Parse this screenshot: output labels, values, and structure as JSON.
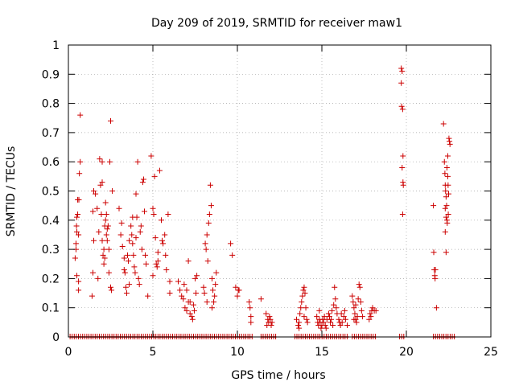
{
  "chart_data": {
    "type": "scatter",
    "title": "Day 209 of 2019, SRMTID for receiver maw1",
    "xlabel": "GPS time / hours",
    "ylabel": "SRMTID / TECUs",
    "xlim": [
      0,
      25
    ],
    "ylim": [
      0,
      1
    ],
    "xticks": [
      "0",
      "5",
      "10",
      "15",
      "20",
      "25"
    ],
    "yticks": [
      "0",
      "0.1",
      "0.2",
      "0.3",
      "0.4",
      "0.5",
      "0.6",
      "0.7",
      "0.8",
      "0.9",
      "1"
    ],
    "marker": "+",
    "series_color": "#cc0000",
    "zero_band": [
      [
        0.1,
        10.9
      ],
      [
        11.4,
        12.3
      ],
      [
        13.4,
        16.6
      ],
      [
        16.8,
        18.2
      ],
      [
        19.6,
        19.9
      ],
      [
        21.6,
        22.9
      ]
    ],
    "points": [
      [
        0.4,
        0.27
      ],
      [
        0.45,
        0.32
      ],
      [
        0.5,
        0.36
      ],
      [
        0.5,
        0.41
      ],
      [
        0.55,
        0.47
      ],
      [
        0.5,
        0.21
      ],
      [
        0.6,
        0.19
      ],
      [
        0.6,
        0.16
      ],
      [
        0.65,
        0.56
      ],
      [
        0.7,
        0.6
      ],
      [
        0.7,
        0.76
      ],
      [
        0.55,
        0.42
      ],
      [
        0.6,
        0.35
      ],
      [
        0.45,
        0.3
      ],
      [
        0.62,
        0.47
      ],
      [
        0.48,
        0.38
      ],
      [
        1.4,
        0.14
      ],
      [
        1.45,
        0.22
      ],
      [
        1.5,
        0.33
      ],
      [
        1.45,
        0.43
      ],
      [
        1.5,
        0.5
      ],
      [
        1.6,
        0.49
      ],
      [
        1.7,
        0.44
      ],
      [
        1.8,
        0.36
      ],
      [
        1.85,
        0.61
      ],
      [
        1.9,
        0.52
      ],
      [
        2.0,
        0.6
      ],
      [
        1.95,
        0.42
      ],
      [
        2.0,
        0.33
      ],
      [
        2.05,
        0.28
      ],
      [
        2.1,
        0.25
      ],
      [
        2.1,
        0.3
      ],
      [
        2.15,
        0.38
      ],
      [
        2.2,
        0.4
      ],
      [
        2.2,
        0.46
      ],
      [
        2.25,
        0.35
      ],
      [
        2.3,
        0.33
      ],
      [
        2.3,
        0.37
      ],
      [
        2.35,
        0.38
      ],
      [
        2.4,
        0.3
      ],
      [
        2.45,
        0.6
      ],
      [
        2.5,
        0.74
      ],
      [
        2.5,
        0.17
      ],
      [
        2.55,
        0.16
      ],
      [
        2.6,
        0.5
      ],
      [
        2.0,
        0.53
      ],
      [
        2.15,
        0.27
      ],
      [
        2.25,
        0.42
      ],
      [
        1.75,
        0.2
      ],
      [
        2.4,
        0.22
      ],
      [
        3.0,
        0.44
      ],
      [
        3.1,
        0.35
      ],
      [
        3.2,
        0.31
      ],
      [
        3.3,
        0.23
      ],
      [
        3.35,
        0.22
      ],
      [
        3.4,
        0.17
      ],
      [
        3.45,
        0.15
      ],
      [
        3.5,
        0.28
      ],
      [
        3.55,
        0.26
      ],
      [
        3.6,
        0.33
      ],
      [
        3.7,
        0.38
      ],
      [
        3.75,
        0.35
      ],
      [
        3.8,
        0.32
      ],
      [
        3.85,
        0.28
      ],
      [
        3.9,
        0.24
      ],
      [
        3.95,
        0.22
      ],
      [
        4.0,
        0.49
      ],
      [
        4.05,
        0.41
      ],
      [
        4.1,
        0.6
      ],
      [
        4.15,
        0.2
      ],
      [
        4.2,
        0.18
      ],
      [
        4.25,
        0.36
      ],
      [
        4.3,
        0.38
      ],
      [
        4.4,
        0.53
      ],
      [
        4.45,
        0.54
      ],
      [
        4.5,
        0.43
      ],
      [
        4.55,
        0.28
      ],
      [
        4.6,
        0.25
      ],
      [
        3.6,
        0.18
      ],
      [
        3.3,
        0.27
      ],
      [
        3.15,
        0.39
      ],
      [
        4.0,
        0.34
      ],
      [
        3.8,
        0.41
      ],
      [
        4.35,
        0.3
      ],
      [
        4.9,
        0.62
      ],
      [
        5.0,
        0.44
      ],
      [
        5.05,
        0.42
      ],
      [
        5.1,
        0.55
      ],
      [
        5.15,
        0.34
      ],
      [
        5.2,
        0.25
      ],
      [
        5.25,
        0.24
      ],
      [
        5.3,
        0.26
      ],
      [
        5.4,
        0.57
      ],
      [
        5.5,
        0.4
      ],
      [
        5.55,
        0.33
      ],
      [
        5.6,
        0.32
      ],
      [
        5.7,
        0.35
      ],
      [
        5.75,
        0.28
      ],
      [
        5.8,
        0.23
      ],
      [
        5.9,
        0.42
      ],
      [
        6.0,
        0.19
      ],
      [
        6.0,
        0.15
      ],
      [
        4.7,
        0.14
      ],
      [
        5.0,
        0.21
      ],
      [
        5.3,
        0.29
      ],
      [
        6.5,
        0.19
      ],
      [
        6.6,
        0.16
      ],
      [
        6.7,
        0.14
      ],
      [
        6.8,
        0.13
      ],
      [
        6.9,
        0.1
      ],
      [
        7.0,
        0.09
      ],
      [
        7.1,
        0.12
      ],
      [
        7.1,
        0.26
      ],
      [
        7.2,
        0.08
      ],
      [
        7.3,
        0.07
      ],
      [
        7.35,
        0.06
      ],
      [
        7.4,
        0.11
      ],
      [
        7.45,
        0.09
      ],
      [
        7.5,
        0.2
      ],
      [
        7.55,
        0.15
      ],
      [
        7.6,
        0.21
      ],
      [
        7.0,
        0.16
      ],
      [
        7.2,
        0.12
      ],
      [
        6.85,
        0.18
      ],
      [
        8.0,
        0.17
      ],
      [
        8.05,
        0.15
      ],
      [
        8.1,
        0.32
      ],
      [
        8.15,
        0.3
      ],
      [
        8.2,
        0.35
      ],
      [
        8.25,
        0.26
      ],
      [
        8.3,
        0.39
      ],
      [
        8.35,
        0.42
      ],
      [
        8.4,
        0.52
      ],
      [
        8.45,
        0.45
      ],
      [
        8.5,
        0.2
      ],
      [
        8.55,
        0.16
      ],
      [
        8.6,
        0.12
      ],
      [
        8.65,
        0.14
      ],
      [
        8.7,
        0.18
      ],
      [
        8.75,
        0.22
      ],
      [
        8.2,
        0.12
      ],
      [
        8.5,
        0.1
      ],
      [
        9.6,
        0.32
      ],
      [
        9.7,
        0.28
      ],
      [
        9.9,
        0.17
      ],
      [
        10.0,
        0.14
      ],
      [
        10.05,
        0.16
      ],
      [
        10.1,
        0.16
      ],
      [
        10.7,
        0.12
      ],
      [
        10.75,
        0.1
      ],
      [
        10.8,
        0.07
      ],
      [
        10.8,
        0.05
      ],
      [
        11.4,
        0.13
      ],
      [
        11.7,
        0.08
      ],
      [
        11.8,
        0.06
      ],
      [
        11.85,
        0.05
      ],
      [
        11.9,
        0.07
      ],
      [
        11.95,
        0.06
      ],
      [
        12.0,
        0.04
      ],
      [
        12.05,
        0.05
      ],
      [
        11.75,
        0.04
      ],
      [
        13.5,
        0.06
      ],
      [
        13.6,
        0.04
      ],
      [
        13.65,
        0.05
      ],
      [
        13.7,
        0.08
      ],
      [
        13.75,
        0.1
      ],
      [
        13.8,
        0.12
      ],
      [
        13.85,
        0.14
      ],
      [
        13.9,
        0.16
      ],
      [
        13.95,
        0.17
      ],
      [
        14.0,
        0.15
      ],
      [
        14.05,
        0.1
      ],
      [
        14.1,
        0.06
      ],
      [
        14.15,
        0.05
      ],
      [
        13.65,
        0.03
      ],
      [
        13.95,
        0.07
      ],
      [
        14.7,
        0.07
      ],
      [
        14.75,
        0.05
      ],
      [
        14.8,
        0.04
      ],
      [
        14.85,
        0.06
      ],
      [
        14.9,
        0.05
      ],
      [
        14.95,
        0.03
      ],
      [
        15.0,
        0.04
      ],
      [
        15.05,
        0.06
      ],
      [
        15.1,
        0.05
      ],
      [
        15.15,
        0.07
      ],
      [
        15.2,
        0.04
      ],
      [
        15.3,
        0.06
      ],
      [
        15.4,
        0.08
      ],
      [
        15.45,
        0.07
      ],
      [
        15.5,
        0.05
      ],
      [
        15.55,
        0.06
      ],
      [
        15.6,
        0.09
      ],
      [
        15.7,
        0.11
      ],
      [
        15.75,
        0.17
      ],
      [
        15.8,
        0.13
      ],
      [
        15.85,
        0.1
      ],
      [
        15.9,
        0.08
      ],
      [
        16.0,
        0.06
      ],
      [
        16.05,
        0.05
      ],
      [
        16.1,
        0.04
      ],
      [
        16.2,
        0.05
      ],
      [
        16.3,
        0.07
      ],
      [
        16.35,
        0.09
      ],
      [
        16.4,
        0.06
      ],
      [
        16.5,
        0.04
      ],
      [
        14.85,
        0.09
      ],
      [
        15.25,
        0.03
      ],
      [
        15.65,
        0.04
      ],
      [
        16.15,
        0.08
      ],
      [
        16.8,
        0.14
      ],
      [
        16.85,
        0.12
      ],
      [
        16.9,
        0.1
      ],
      [
        16.95,
        0.08
      ],
      [
        17.0,
        0.06
      ],
      [
        17.05,
        0.05
      ],
      [
        17.1,
        0.07
      ],
      [
        17.15,
        0.13
      ],
      [
        17.2,
        0.18
      ],
      [
        17.25,
        0.17
      ],
      [
        17.3,
        0.12
      ],
      [
        17.35,
        0.09
      ],
      [
        17.4,
        0.07
      ],
      [
        17.0,
        0.11
      ],
      [
        16.9,
        0.06
      ],
      [
        17.8,
        0.06
      ],
      [
        17.85,
        0.08
      ],
      [
        17.9,
        0.07
      ],
      [
        17.95,
        0.09
      ],
      [
        18.0,
        0.1
      ],
      [
        18.1,
        0.09
      ],
      [
        18.2,
        0.09
      ],
      [
        19.7,
        0.92
      ],
      [
        19.75,
        0.91
      ],
      [
        19.7,
        0.87
      ],
      [
        19.72,
        0.79
      ],
      [
        19.78,
        0.78
      ],
      [
        19.8,
        0.62
      ],
      [
        19.75,
        0.58
      ],
      [
        19.8,
        0.53
      ],
      [
        19.82,
        0.52
      ],
      [
        19.78,
        0.42
      ],
      [
        21.6,
        0.45
      ],
      [
        21.62,
        0.29
      ],
      [
        21.65,
        0.23
      ],
      [
        21.68,
        0.21
      ],
      [
        21.7,
        0.2
      ],
      [
        21.72,
        0.23
      ],
      [
        21.78,
        0.1
      ],
      [
        22.2,
        0.73
      ],
      [
        22.25,
        0.6
      ],
      [
        22.28,
        0.56
      ],
      [
        22.3,
        0.52
      ],
      [
        22.32,
        0.5
      ],
      [
        22.35,
        0.48
      ],
      [
        22.38,
        0.45
      ],
      [
        22.3,
        0.44
      ],
      [
        22.35,
        0.41
      ],
      [
        22.4,
        0.4
      ],
      [
        22.42,
        0.39
      ],
      [
        22.4,
        0.58
      ],
      [
        22.45,
        0.55
      ],
      [
        22.47,
        0.52
      ],
      [
        22.5,
        0.49
      ],
      [
        22.48,
        0.42
      ],
      [
        22.52,
        0.68
      ],
      [
        22.55,
        0.67
      ],
      [
        22.58,
        0.66
      ],
      [
        22.35,
        0.29
      ],
      [
        22.3,
        0.36
      ],
      [
        22.45,
        0.62
      ]
    ]
  }
}
